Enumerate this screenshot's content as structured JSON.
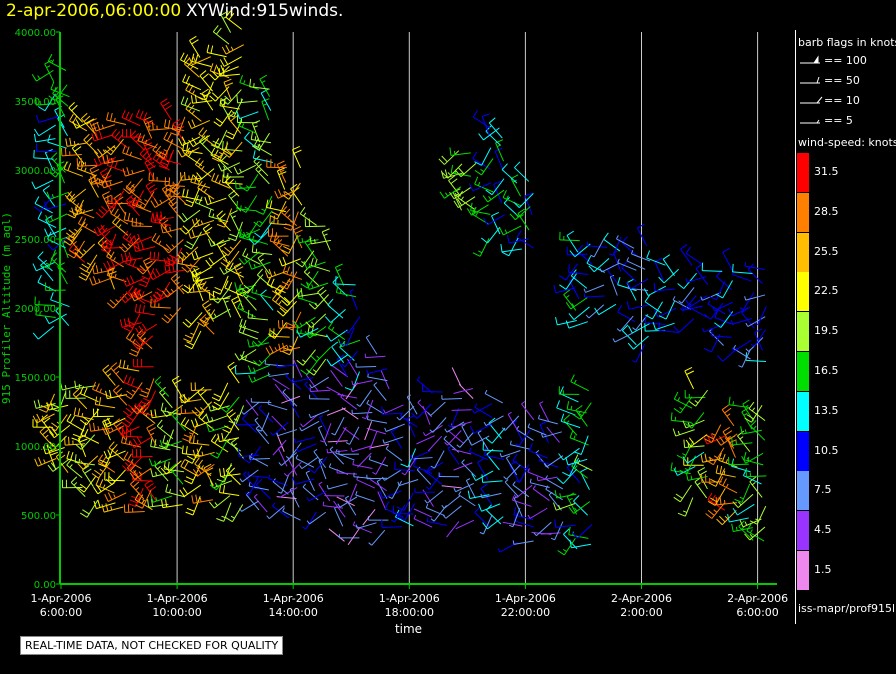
{
  "header": {
    "time_label": "2-apr-2006,06:00:00",
    "title": "XYWind:915winds."
  },
  "legend": {
    "barb_title": "barb flags in knots",
    "barb_items": [
      "== 100",
      "== 50",
      "== 10",
      "== 5"
    ],
    "speed_title": "wind-speed: knots",
    "speed_bins": [
      {
        "label": "31.5",
        "color": "#ff0000"
      },
      {
        "label": "28.5",
        "color": "#ff8000"
      },
      {
        "label": "25.5",
        "color": "#ffbf00"
      },
      {
        "label": "22.5",
        "color": "#ffff00"
      },
      {
        "label": "19.5",
        "color": "#aaff33"
      },
      {
        "label": "16.5",
        "color": "#00dd00"
      },
      {
        "label": "13.5",
        "color": "#00ffff"
      },
      {
        "label": "10.5",
        "color": "#0000ff"
      },
      {
        "label": "7.5",
        "color": "#6699ff"
      },
      {
        "label": "4.5",
        "color": "#9933ff"
      },
      {
        "label": "1.5",
        "color": "#ee88ee"
      }
    ]
  },
  "source_label": "iss-mapr/prof915l",
  "quality_note": "REAL-TIME DATA, NOT CHECKED FOR QUALITY",
  "chart_data": {
    "type": "scatter",
    "title": "XYWind:915winds.",
    "xlabel": "time",
    "ylabel": "915 Profiler Altitude (m agl)",
    "ylim": [
      0,
      4000
    ],
    "yticks": [
      "0.00",
      "500.00",
      "1000.00",
      "1500.00",
      "2000.00",
      "2500.00",
      "3000.00",
      "3500.00",
      "4000.00"
    ],
    "xticks": [
      {
        "date": "1-Apr-2006",
        "time": "6:00:00"
      },
      {
        "date": "1-Apr-2006",
        "time": "10:00:00"
      },
      {
        "date": "1-Apr-2006",
        "time": "14:00:00"
      },
      {
        "date": "1-Apr-2006",
        "time": "18:00:00"
      },
      {
        "date": "1-Apr-2006",
        "time": "22:00:00"
      },
      {
        "date": "2-Apr-2006",
        "time": "2:00:00"
      },
      {
        "date": "2-Apr-2006",
        "time": "6:00:00"
      }
    ],
    "xgrid": true,
    "axis_color": "#00cc00",
    "profiles": [
      {
        "time": "1-Apr-2006 06:00",
        "low": [
          800,
          1400
        ],
        "high": [
          1850,
          3750
        ],
        "speed_low": 23,
        "speed_high": 14
      },
      {
        "time": "1-Apr-2006 07:00",
        "low": [
          600,
          1450
        ],
        "high": [
          2300,
          3400
        ],
        "speed_low": 22,
        "speed_high": 27
      },
      {
        "time": "1-Apr-2006 08:00",
        "low": [
          550,
          1500
        ],
        "high": [
          2100,
          3300
        ],
        "speed_low": 26,
        "speed_high": 29
      },
      {
        "time": "1-Apr-2006 09:00",
        "low": [
          500,
          1550
        ],
        "high": [
          1700,
          3300
        ],
        "speed_low": 30,
        "speed_high": 31
      },
      {
        "time": "1-Apr-2006 10:00",
        "low": [
          550,
          1400
        ],
        "high": [
          2000,
          3400
        ],
        "speed_low": 19,
        "speed_high": 30
      },
      {
        "time": "1-Apr-2006 11:00",
        "low": [
          600,
          1400
        ],
        "high": [
          1800,
          3800
        ],
        "speed_low": 25,
        "speed_high": 24
      },
      {
        "time": "1-Apr-2006 12:00",
        "low": [
          550,
          1450
        ],
        "high": [
          1900,
          4000
        ],
        "speed_low": 20,
        "speed_high": 22
      },
      {
        "time": "1-Apr-2006 13:00",
        "low": [
          500,
          1300
        ],
        "high": [
          1500,
          3600
        ],
        "speed_low": 8,
        "speed_high": 17
      },
      {
        "time": "1-Apr-2006 14:00",
        "low": [
          450,
          1600
        ],
        "high": [
          1700,
          3000
        ],
        "speed_low": 6,
        "speed_high": 26
      },
      {
        "time": "1-Apr-2006 15:00",
        "low": [
          500,
          1500
        ],
        "high": [
          1600,
          2600
        ],
        "speed_low": 7,
        "speed_high": 18
      },
      {
        "time": "1-Apr-2006 16:00",
        "low": [
          300,
          1500
        ],
        "high": [
          1500,
          2200
        ],
        "speed_low": 5,
        "speed_high": 12
      },
      {
        "time": "1-Apr-2006 17:00",
        "low": [
          350,
          1650
        ],
        "high": null,
        "speed_low": 6,
        "speed_high": null
      },
      {
        "time": "1-Apr-2006 18:00",
        "low": [
          400,
          1300
        ],
        "high": null,
        "speed_low": 9,
        "speed_high": null
      },
      {
        "time": "1-Apr-2006 19:00",
        "low": [
          400,
          1400
        ],
        "high": null,
        "speed_low": 7,
        "speed_high": null
      },
      {
        "time": "1-Apr-2006 20:00",
        "low": [
          450,
          1450
        ],
        "high": [
          2700,
          3150
        ],
        "speed_low": 6,
        "speed_high": 18
      },
      {
        "time": "1-Apr-2006 21:00",
        "low": [
          400,
          1350
        ],
        "high": [
          2500,
          3300
        ],
        "speed_low": 11,
        "speed_high": 14
      },
      {
        "time": "1-Apr-2006 22:00",
        "low": [
          300,
          1250
        ],
        "high": [
          2400,
          2900
        ],
        "speed_low": 8,
        "speed_high": 15
      },
      {
        "time": "1-Apr-2006 23:00",
        "low": [
          350,
          1150
        ],
        "high": null,
        "speed_low": 7,
        "speed_high": null
      },
      {
        "time": "2-Apr-2006 00:00",
        "low": [
          250,
          1400
        ],
        "high": [
          1900,
          2500
        ],
        "speed_low": 15,
        "speed_high": 13
      },
      {
        "time": "2-Apr-2006 01:00",
        "low": null,
        "high": [
          2000,
          2500
        ],
        "speed_low": null,
        "speed_high": 11
      },
      {
        "time": "2-Apr-2006 02:00",
        "low": null,
        "high": [
          1700,
          2450
        ],
        "speed_low": null,
        "speed_high": 10
      },
      {
        "time": "2-Apr-2006 03:00",
        "low": null,
        "high": [
          1800,
          2300
        ],
        "speed_low": null,
        "speed_high": 12
      },
      {
        "time": "2-Apr-2006 04:00",
        "low": [
          600,
          1400
        ],
        "high": [
          1900,
          2300
        ],
        "speed_low": 18,
        "speed_high": 10
      },
      {
        "time": "2-Apr-2006 05:00",
        "low": [
          500,
          1200
        ],
        "high": [
          1700,
          2300
        ],
        "speed_low": 28,
        "speed_high": 11
      },
      {
        "time": "2-Apr-2006 06:00",
        "low": [
          300,
          1300
        ],
        "high": [
          1600,
          2300
        ],
        "speed_low": 17,
        "speed_high": 9
      }
    ]
  }
}
